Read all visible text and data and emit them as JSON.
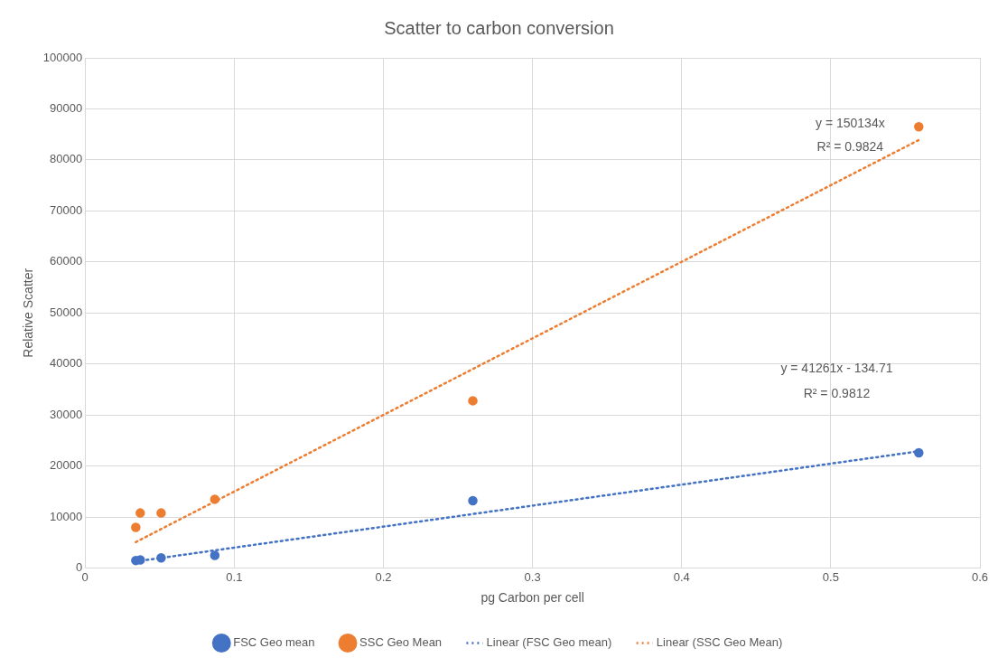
{
  "chart_data": {
    "type": "scatter",
    "title": "Scatter to carbon conversion",
    "xlabel": "pg Carbon per cell",
    "ylabel": "Relative Scatter",
    "series": [
      {
        "name": "FSC Geo mean",
        "color": "#4472c4",
        "x": [
          0.034,
          0.037,
          0.051,
          0.087,
          0.26,
          0.559
        ],
        "values": [
          1500,
          1600,
          2000,
          2500,
          13200,
          22600
        ]
      },
      {
        "name": "SSC Geo Mean",
        "color": "#ed7d31",
        "x": [
          0.034,
          0.037,
          0.051,
          0.087,
          0.26,
          0.559
        ],
        "values": [
          8000,
          10800,
          10800,
          13500,
          32800,
          86500
        ]
      },
      {
        "name": "Linear (FSC Geo mean)",
        "type": "line",
        "color": "#4472c4",
        "marker": "none",
        "line_style": "dotted",
        "x": [
          0.034,
          0.559
        ],
        "values": [
          1300,
          22900
        ]
      },
      {
        "name": "Linear (SSC Geo Mean)",
        "type": "line",
        "color": "#ed7d31",
        "marker": "none",
        "line_style": "dotted",
        "x": [
          0.034,
          0.559
        ],
        "values": [
          5100,
          83900
        ]
      }
    ],
    "xlim": [
      0,
      0.6
    ],
    "xticks": [
      0,
      0.1,
      0.2,
      0.3,
      0.4,
      0.5,
      0.6
    ],
    "ylim": [
      0,
      100000
    ],
    "yticks": [
      0,
      10000,
      20000,
      30000,
      40000,
      50000,
      60000,
      70000,
      80000,
      90000,
      100000
    ],
    "grid": true,
    "legend": "bottom",
    "marker": "circle",
    "annotations": [
      "y = 150134x",
      "R² = 0.9824",
      "y = 41261x - 134.71",
      "R² = 0.9812"
    ]
  }
}
